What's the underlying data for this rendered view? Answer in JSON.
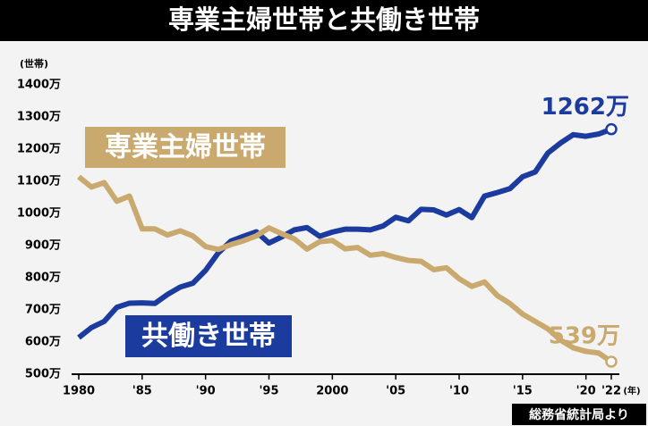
{
  "chart_data": {
    "type": "line",
    "title": "専業主婦世帯と共働き世帯",
    "y_unit": "(世帯)",
    "x_unit": "(年)",
    "source": "総務省統計局より",
    "x": [
      1980,
      1981,
      1982,
      1983,
      1984,
      1985,
      1986,
      1987,
      1988,
      1989,
      1990,
      1991,
      1992,
      1993,
      1994,
      1995,
      1996,
      1997,
      1998,
      1999,
      2000,
      2001,
      2002,
      2003,
      2004,
      2005,
      2006,
      2007,
      2008,
      2009,
      2010,
      2011,
      2012,
      2013,
      2014,
      2015,
      2016,
      2017,
      2018,
      2019,
      2020,
      2021,
      2022
    ],
    "series": [
      {
        "name": "共働き世帯",
        "color": "#1c3b9e",
        "end_label": "1262万",
        "values": [
          614,
          645,
          664,
          708,
          721,
          722,
          720,
          748,
          771,
          783,
          823,
          877,
          914,
          929,
          943,
          908,
          927,
          949,
          956,
          929,
          942,
          951,
          951,
          949,
          961,
          988,
          977,
          1013,
          1011,
          995,
          1012,
          987,
          1054,
          1065,
          1077,
          1114,
          1129,
          1188,
          1219,
          1245,
          1240,
          1247,
          1262
        ]
      },
      {
        "name": "専業主婦世帯",
        "color": "#c9a96e",
        "end_label": "539万",
        "values": [
          1114,
          1082,
          1096,
          1038,
          1054,
          952,
          952,
          933,
          946,
          930,
          897,
          888,
          903,
          915,
          930,
          955,
          937,
          921,
          889,
          912,
          916,
          890,
          894,
          870,
          875,
          863,
          854,
          851,
          825,
          831,
          797,
          773,
          787,
          745,
          720,
          687,
          664,
          641,
          606,
          582,
          571,
          566,
          539
        ]
      }
    ],
    "xlim": [
      1980,
      2022
    ],
    "xticks": [
      1980,
      {
        "value": 1985,
        "label": "'85"
      },
      {
        "value": 1990,
        "label": "'90"
      },
      {
        "value": 1995,
        "label": "'95"
      },
      2000,
      {
        "value": 2005,
        "label": "'05"
      },
      {
        "value": 2010,
        "label": "'10"
      },
      {
        "value": 2015,
        "label": "'15"
      },
      {
        "value": 2020,
        "label": "'20"
      },
      {
        "value": 2022,
        "label": "'22"
      }
    ],
    "ylim": [
      500,
      1400
    ],
    "yticks": [
      {
        "value": 500,
        "label": "500万"
      },
      {
        "value": 600,
        "label": "600万"
      },
      {
        "value": 700,
        "label": "700万"
      },
      {
        "value": 800,
        "label": "800万"
      },
      {
        "value": 900,
        "label": "900万"
      },
      {
        "value": 1000,
        "label": "1000万"
      },
      {
        "value": 1100,
        "label": "1100万"
      },
      {
        "value": 1200,
        "label": "1200万"
      },
      {
        "value": 1300,
        "label": "1300万"
      },
      {
        "value": 1400,
        "label": "1400万"
      }
    ]
  }
}
